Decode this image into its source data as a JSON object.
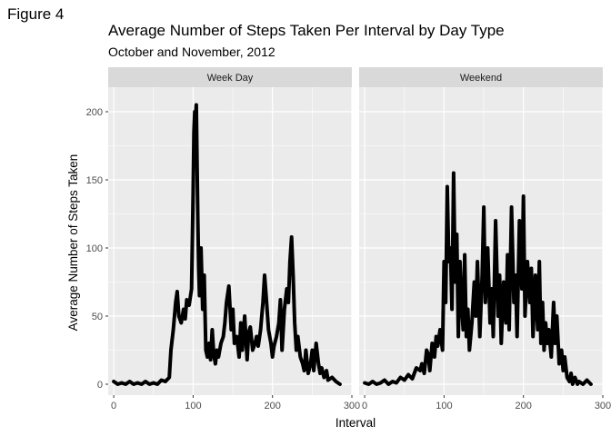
{
  "figure_label": "Figure 4",
  "chart_data": {
    "type": "line",
    "title": "Average Number of Steps Taken Per Interval by Day Type",
    "subtitle": "October and November, 2012",
    "xlabel": "Interval",
    "ylabel": "Average Number of Steps Taken",
    "xlim": [
      -7,
      300
    ],
    "ylim": [
      -8,
      218
    ],
    "xticks": [
      0,
      100,
      200,
      300
    ],
    "yticks": [
      0,
      50,
      100,
      150,
      200
    ],
    "grid": true,
    "line_color": "#000000",
    "panel_bg": "#ebebeb",
    "strip_bg": "#d9d9d9",
    "panels": [
      {
        "name": "Week Day",
        "x": [
          0,
          5,
          10,
          15,
          20,
          25,
          30,
          35,
          40,
          45,
          50,
          55,
          60,
          65,
          70,
          72,
          75,
          78,
          80,
          82,
          85,
          88,
          90,
          92,
          95,
          98,
          100,
          101,
          102,
          103,
          104,
          105,
          106,
          107,
          108,
          110,
          112,
          114,
          116,
          118,
          120,
          122,
          124,
          126,
          128,
          130,
          132,
          135,
          138,
          140,
          142,
          145,
          148,
          150,
          152,
          155,
          158,
          160,
          162,
          165,
          168,
          170,
          172,
          175,
          178,
          180,
          182,
          185,
          188,
          190,
          192,
          195,
          198,
          200,
          202,
          205,
          208,
          210,
          212,
          215,
          218,
          220,
          222,
          224,
          226,
          228,
          230,
          232,
          235,
          238,
          240,
          242,
          245,
          248,
          250,
          252,
          255,
          258,
          260,
          262,
          265,
          268,
          270,
          275,
          280,
          285
        ],
        "y": [
          2,
          0,
          1,
          0,
          2,
          0,
          1,
          0,
          2,
          0,
          1,
          0,
          3,
          2,
          5,
          25,
          40,
          60,
          68,
          50,
          45,
          55,
          48,
          62,
          58,
          70,
          140,
          185,
          200,
          195,
          205,
          160,
          120,
          85,
          65,
          100,
          55,
          80,
          25,
          20,
          30,
          18,
          40,
          22,
          15,
          25,
          20,
          30,
          35,
          45,
          60,
          72,
          40,
          55,
          30,
          35,
          20,
          45,
          25,
          50,
          18,
          38,
          42,
          25,
          30,
          35,
          28,
          40,
          60,
          80,
          65,
          40,
          30,
          20,
          28,
          35,
          45,
          62,
          25,
          55,
          70,
          60,
          90,
          108,
          80,
          45,
          25,
          35,
          20,
          15,
          10,
          25,
          8,
          15,
          25,
          10,
          30,
          15,
          8,
          12,
          5,
          10,
          3,
          5,
          2,
          0
        ]
      },
      {
        "name": "Weekend",
        "x": [
          0,
          5,
          10,
          15,
          20,
          25,
          30,
          35,
          40,
          45,
          50,
          55,
          60,
          65,
          70,
          72,
          75,
          78,
          80,
          82,
          85,
          88,
          90,
          92,
          95,
          98,
          100,
          102,
          104,
          106,
          108,
          110,
          112,
          114,
          116,
          118,
          120,
          122,
          124,
          126,
          128,
          130,
          132,
          135,
          138,
          140,
          142,
          145,
          148,
          150,
          152,
          155,
          158,
          160,
          162,
          165,
          168,
          170,
          172,
          175,
          178,
          180,
          182,
          185,
          188,
          190,
          192,
          195,
          198,
          200,
          202,
          205,
          208,
          210,
          212,
          215,
          218,
          220,
          222,
          224,
          226,
          228,
          230,
          232,
          235,
          238,
          240,
          242,
          245,
          248,
          250,
          252,
          255,
          258,
          260,
          262,
          265,
          268,
          270,
          275,
          280,
          285
        ],
        "y": [
          1,
          0,
          2,
          0,
          1,
          3,
          0,
          2,
          1,
          5,
          3,
          7,
          4,
          12,
          10,
          15,
          8,
          25,
          22,
          10,
          30,
          20,
          35,
          28,
          40,
          25,
          90,
          60,
          145,
          90,
          100,
          55,
          155,
          75,
          110,
          35,
          90,
          60,
          40,
          95,
          35,
          55,
          25,
          45,
          75,
          50,
          90,
          35,
          80,
          130,
          60,
          100,
          45,
          70,
          35,
          120,
          50,
          80,
          30,
          75,
          45,
          95,
          40,
          130,
          60,
          80,
          35,
          120,
          70,
          138,
          50,
          90,
          60,
          85,
          35,
          80,
          40,
          90,
          30,
          60,
          25,
          45,
          30,
          40,
          20,
          60,
          30,
          50,
          15,
          25,
          10,
          20,
          5,
          2,
          8,
          0,
          5,
          0,
          2,
          0,
          3,
          0
        ]
      }
    ]
  }
}
